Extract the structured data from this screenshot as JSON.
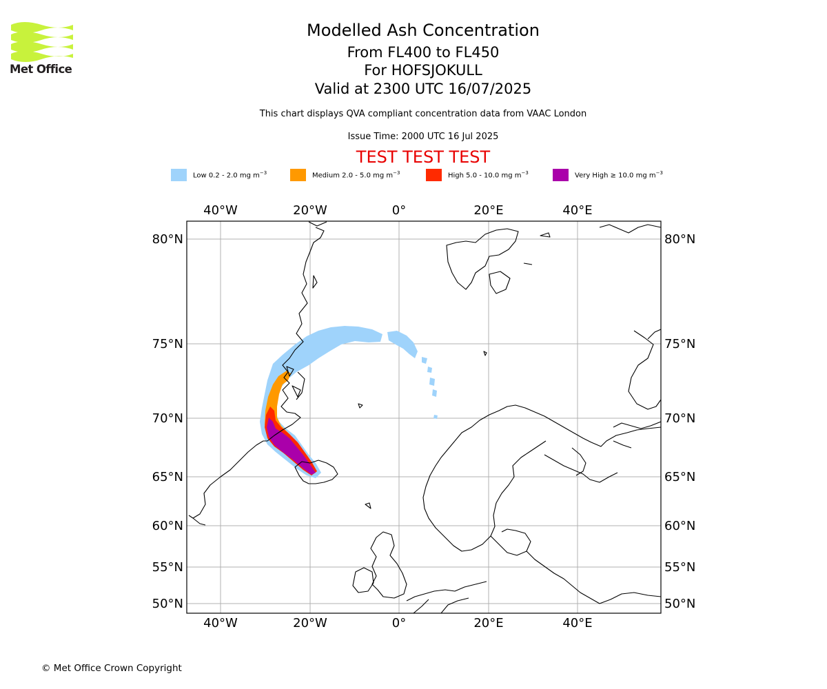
{
  "header": {
    "logo_text": "Met Office",
    "title": "Modelled Ash Concentration",
    "flight_levels": "From FL400 to FL450",
    "volcano": "For HOFSJOKULL",
    "valid_time": "Valid at 2300 UTC 16/07/2025",
    "description": "This chart displays QVA compliant concentration data from VAAC London",
    "issue_time": "Issue Time: 2000 UTC 16 Jul 2025",
    "test_banner": "TEST TEST TEST"
  },
  "legend": [
    {
      "label": "Low 0.2 - 2.0 mg m",
      "exp": "−3",
      "color": "#9fd3fb"
    },
    {
      "label": "Medium 2.0 - 5.0 mg m",
      "exp": "−3",
      "color": "#ff9900"
    },
    {
      "label": "High 5.0 - 10.0 mg m",
      "exp": "−3",
      "color": "#ff2a00"
    },
    {
      "label": "Very High  ≥  10.0 mg m",
      "exp": "−3",
      "color": "#aa00aa"
    }
  ],
  "map": {
    "lon_ticks": [
      "40°W",
      "20°W",
      "0°",
      "20°E",
      "40°E"
    ],
    "lat_ticks": [
      "80°N",
      "75°N",
      "70°N",
      "65°N",
      "60°N",
      "55°N",
      "50°N"
    ],
    "gridlines": true
  },
  "footer": {
    "copyright": "© Met Office Crown Copyright"
  },
  "colors": {
    "logo_green": "#c8f23c",
    "test_red": "#e80000",
    "gridline": "#b0b0b0"
  }
}
